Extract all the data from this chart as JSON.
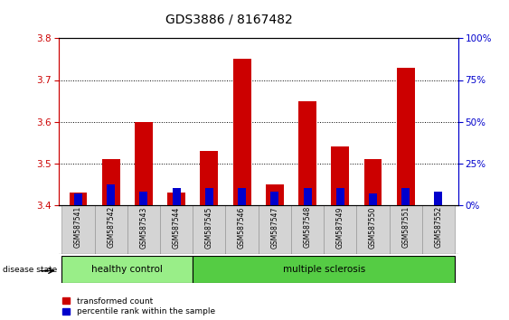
{
  "title": "GDS3886 / 8167482",
  "samples": [
    "GSM587541",
    "GSM587542",
    "GSM587543",
    "GSM587544",
    "GSM587545",
    "GSM587546",
    "GSM587547",
    "GSM587548",
    "GSM587549",
    "GSM587550",
    "GSM587551",
    "GSM587552"
  ],
  "red_values": [
    3.43,
    3.51,
    3.6,
    3.43,
    3.53,
    3.75,
    3.45,
    3.65,
    3.54,
    3.51,
    3.73,
    3.4
  ],
  "blue_values_pct": [
    7,
    12,
    8,
    10,
    10,
    10,
    8,
    10,
    10,
    7,
    10,
    8
  ],
  "ymin": 3.4,
  "ymax": 3.8,
  "yticks": [
    3.4,
    3.5,
    3.6,
    3.7,
    3.8
  ],
  "right_yticks": [
    0,
    25,
    50,
    75,
    100
  ],
  "red_color": "#cc0000",
  "blue_color": "#0000cc",
  "bar_width": 0.55,
  "group_labels": [
    "healthy control",
    "multiple sclerosis"
  ],
  "healthy_color": "#99ee88",
  "ms_color": "#55cc44",
  "disease_state_label": "disease state",
  "legend_red": "transformed count",
  "legend_blue": "percentile rank within the sample",
  "title_fontsize": 10,
  "tick_fontsize": 7.5,
  "xtick_fontsize": 5.5
}
